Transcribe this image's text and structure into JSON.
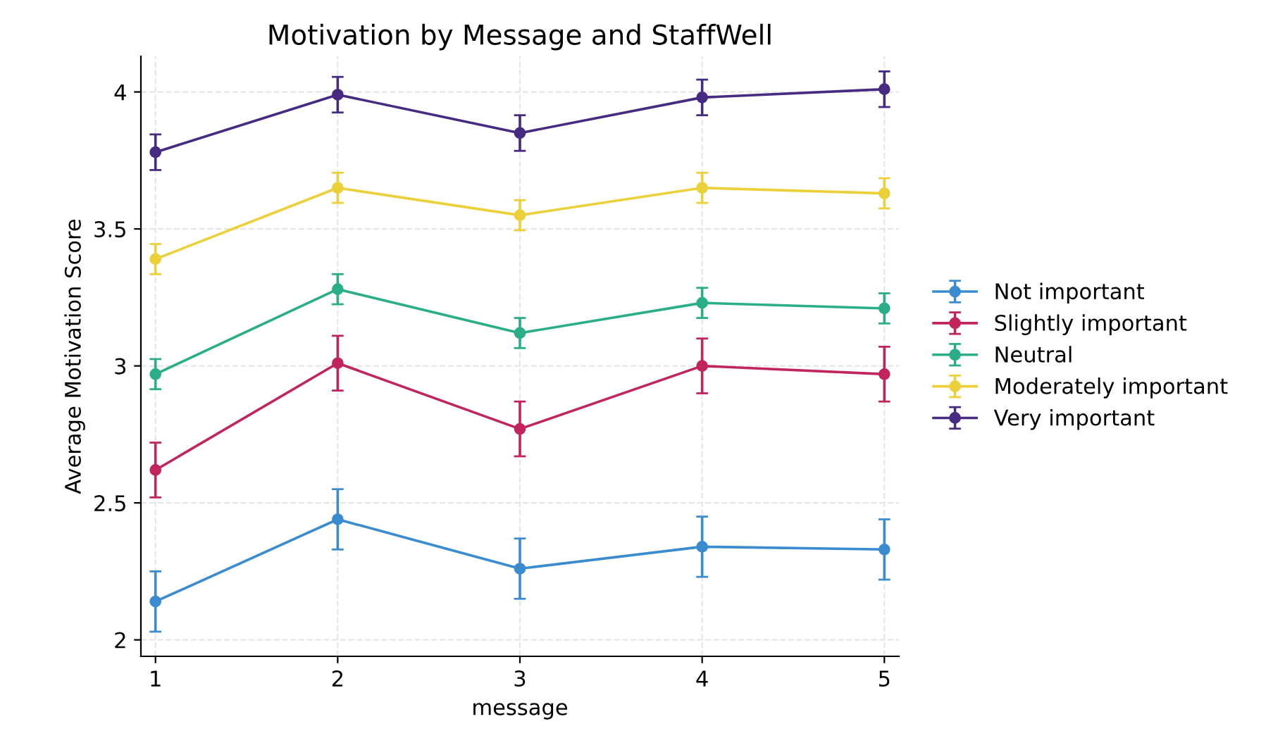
{
  "chart_data": {
    "type": "line",
    "title": "Motivation by Message and StaffWell",
    "xlabel": "message",
    "ylabel": "Average Motivation Score",
    "x": [
      1,
      2,
      3,
      4,
      5
    ],
    "xlim": [
      0.92,
      5.08
    ],
    "xticks": [
      1,
      2,
      3,
      4,
      5
    ],
    "ylim": [
      1.94,
      4.13
    ],
    "yticks": [
      2,
      2.5,
      3,
      3.5,
      4
    ],
    "grid": true,
    "legend": "right",
    "marker": "circle",
    "series": [
      {
        "name": "Not important",
        "color": "#3a8bd0",
        "values": [
          2.14,
          2.44,
          2.26,
          2.34,
          2.33
        ],
        "errors": [
          0.11,
          0.11,
          0.11,
          0.11,
          0.11
        ]
      },
      {
        "name": "Slightly important",
        "color": "#c2245e",
        "values": [
          2.62,
          3.01,
          2.77,
          3.0,
          2.97
        ],
        "errors": [
          0.1,
          0.1,
          0.1,
          0.1,
          0.1
        ]
      },
      {
        "name": "Neutral",
        "color": "#2aae88",
        "values": [
          2.97,
          3.28,
          3.12,
          3.23,
          3.21
        ],
        "errors": [
          0.055,
          0.055,
          0.055,
          0.055,
          0.055
        ]
      },
      {
        "name": "Moderately important",
        "color": "#ecd03a",
        "values": [
          3.39,
          3.65,
          3.55,
          3.65,
          3.63
        ],
        "errors": [
          0.055,
          0.055,
          0.055,
          0.055,
          0.055
        ]
      },
      {
        "name": "Very important",
        "color": "#472a82",
        "values": [
          3.78,
          3.99,
          3.85,
          3.98,
          4.01
        ],
        "errors": [
          0.065,
          0.065,
          0.065,
          0.065,
          0.065
        ]
      }
    ]
  }
}
